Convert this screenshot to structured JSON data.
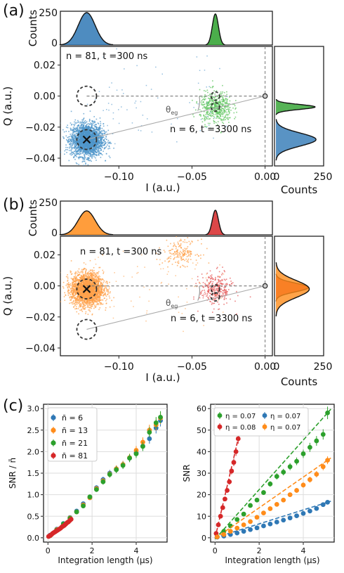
{
  "panels": [
    {
      "id": "a",
      "label": "(a)",
      "ann_top": "n = 81, t =300 ns",
      "ann_bottom": "n = 6, t =3300 ns",
      "theta_label": "θeg",
      "xlabel": "I (a.u.)",
      "ylabel": "Q (a.u.)",
      "xticks": [
        "−0.10",
        "−0.05",
        "0.00"
      ],
      "yticks": [
        "0.02",
        "0.00",
        "−0.02",
        "−0.04"
      ],
      "top_ylabel": "Counts",
      "top_yticks": [
        "0",
        "250"
      ],
      "right_xlabel": "Counts",
      "right_xticks": [
        "0",
        "250"
      ]
    },
    {
      "id": "b",
      "label": "(b)",
      "ann_top": "n = 81, t =300 ns",
      "ann_bottom": "n = 6, t =3300 ns",
      "theta_label": "θeg",
      "xlabel": "I (a.u.)",
      "ylabel": "Q (a.u.)",
      "xticks": [
        "−0.10",
        "−0.05",
        "0.00"
      ],
      "yticks": [
        "0.02",
        "0.00",
        "−0.02",
        "−0.04"
      ],
      "top_ylabel": "Counts",
      "top_yticks": [
        "0",
        "250"
      ],
      "right_xlabel": "Counts",
      "right_xticks": [
        "0",
        "250"
      ]
    }
  ],
  "panel_c_label": "(c)",
  "colors": {
    "blue": "#2f78b5",
    "blue_light": "#4f95c9",
    "green": "#2ca02c",
    "green_light": "#5ec45e",
    "orange": "#ff8c1a",
    "orange_light": "#ffa04a",
    "red": "#d62728",
    "red_light": "#e55a5a",
    "dark": "#1a1a1a"
  },
  "chart_data": [
    {
      "type": "scatter",
      "panel": "a",
      "title": "",
      "xlabel": "I (a.u.)",
      "ylabel": "Q (a.u.)",
      "xlim": [
        -0.14,
        0.005
      ],
      "ylim": [
        -0.045,
        0.032
      ],
      "clusters": [
        {
          "name": "blue cloud",
          "color": "blue",
          "center": [
            -0.122,
            -0.028
          ],
          "count_estimate": 2500
        },
        {
          "name": "green cloud",
          "color": "green",
          "center": [
            -0.034,
            -0.007
          ],
          "count_estimate": 500
        }
      ],
      "markers": [
        {
          "type": "cross",
          "center": [
            -0.122,
            -0.028
          ]
        },
        {
          "type": "dashed_circle",
          "center": [
            -0.122,
            -0.028
          ]
        },
        {
          "type": "dashed_circle",
          "center": [
            -0.122,
            0.0
          ]
        },
        {
          "type": "dashed_circle",
          "center": [
            -0.034,
            -0.007
          ]
        },
        {
          "type": "dashed_circle",
          "center": [
            -0.034,
            0.0
          ]
        },
        {
          "type": "origin_circle",
          "center": [
            0.0,
            0.0
          ]
        }
      ],
      "lines": [
        {
          "style": "dashed",
          "from": [
            -0.122,
            0.0
          ],
          "to": [
            0.0,
            0.0
          ]
        },
        {
          "style": "solid",
          "from": [
            -0.122,
            -0.028
          ],
          "to": [
            0.0,
            0.0
          ]
        }
      ],
      "top_hist": {
        "ylim": [
          0,
          250
        ],
        "peaks": [
          {
            "center": -0.122,
            "height": 250,
            "color": "blue"
          },
          {
            "center": -0.034,
            "height": 240,
            "color": "green"
          }
        ]
      },
      "right_hist": {
        "xlim": [
          0,
          250
        ],
        "peaks": [
          {
            "center": -0.007,
            "height": 205,
            "color": "green"
          },
          {
            "center": -0.028,
            "height": 210,
            "color": "blue"
          }
        ]
      }
    },
    {
      "type": "scatter",
      "panel": "b",
      "title": "",
      "xlabel": "I (a.u.)",
      "ylabel": "Q (a.u.)",
      "xlim": [
        -0.14,
        0.005
      ],
      "ylim": [
        -0.045,
        0.032
      ],
      "clusters": [
        {
          "name": "orange cloud",
          "color": "orange",
          "center": [
            -0.122,
            -0.002
          ],
          "count_estimate": 2500
        },
        {
          "name": "orange secondary",
          "color": "orange",
          "center": [
            -0.058,
            0.022
          ],
          "count_estimate": 180
        },
        {
          "name": "red cloud",
          "color": "red",
          "center": [
            -0.034,
            -0.002
          ],
          "count_estimate": 300
        }
      ],
      "markers": [
        {
          "type": "cross",
          "center": [
            -0.122,
            -0.002
          ]
        },
        {
          "type": "dashed_circle",
          "center": [
            -0.122,
            -0.002
          ]
        },
        {
          "type": "dashed_circle",
          "center": [
            -0.122,
            -0.028
          ]
        },
        {
          "type": "dashed_circle",
          "center": [
            -0.034,
            -0.002
          ]
        },
        {
          "type": "dashed_circle",
          "center": [
            -0.034,
            -0.007
          ]
        },
        {
          "type": "origin_circle",
          "center": [
            0.0,
            0.0
          ]
        }
      ],
      "lines": [
        {
          "style": "dashed",
          "from": [
            -0.122,
            0.0
          ],
          "to": [
            0.0,
            0.0
          ]
        },
        {
          "style": "solid",
          "from": [
            -0.122,
            -0.028
          ],
          "to": [
            0.0,
            0.0
          ]
        }
      ],
      "top_hist": {
        "ylim": [
          0,
          250
        ],
        "peaks": [
          {
            "center": -0.122,
            "height": 185,
            "color": "orange"
          },
          {
            "center": -0.034,
            "height": 190,
            "color": "red"
          }
        ]
      },
      "right_hist": {
        "xlim": [
          0,
          250
        ],
        "peaks": [
          {
            "center": -0.001,
            "height": 170,
            "color": "red"
          },
          {
            "center": -0.002,
            "height": 175,
            "color": "orange"
          }
        ]
      }
    },
    {
      "type": "scatter",
      "panel": "c-left",
      "title": "",
      "xlabel": "Integration length (μs)",
      "ylabel": "SNR / n̄",
      "xlim": [
        -0.2,
        5.4
      ],
      "ylim": [
        -0.1,
        3.1
      ],
      "xticks": [
        "0",
        "2",
        "4"
      ],
      "yticks": [
        "0.0",
        "0.5",
        "1.0",
        "1.5",
        "2.0",
        "2.5",
        "3.0"
      ],
      "grid": true,
      "legend": "top-left",
      "series": [
        {
          "name": "n̄ = 6",
          "color": "blue",
          "x": [
            0.1,
            0.4,
            0.7,
            1.0,
            1.3,
            1.6,
            1.9,
            2.2,
            2.5,
            2.8,
            3.1,
            3.4,
            3.7,
            4.0,
            4.3,
            4.6,
            4.9,
            5.1
          ],
          "y": [
            0.06,
            0.2,
            0.33,
            0.47,
            0.62,
            0.79,
            0.93,
            1.16,
            1.35,
            1.5,
            1.6,
            1.7,
            1.85,
            1.97,
            2.13,
            2.3,
            2.55,
            2.72
          ]
        },
        {
          "name": "n̄ = 13",
          "color": "orange",
          "x": [
            0.1,
            0.4,
            0.7,
            1.0,
            1.3,
            1.6,
            1.9,
            2.2,
            2.5,
            2.8,
            3.1,
            3.4,
            3.7,
            4.0,
            4.3,
            4.6,
            4.9,
            5.1
          ],
          "y": [
            0.05,
            0.19,
            0.31,
            0.46,
            0.6,
            0.76,
            0.93,
            1.14,
            1.32,
            1.48,
            1.6,
            1.7,
            1.86,
            2.03,
            2.22,
            2.5,
            2.62,
            2.78
          ]
        },
        {
          "name": "n̄ = 21",
          "color": "green",
          "x": [
            0.1,
            0.4,
            0.7,
            1.0,
            1.3,
            1.6,
            1.9,
            2.2,
            2.5,
            2.8,
            3.1,
            3.4,
            3.7,
            4.0,
            4.3,
            4.6,
            4.9,
            5.1
          ],
          "y": [
            0.05,
            0.18,
            0.32,
            0.45,
            0.6,
            0.74,
            0.95,
            1.12,
            1.3,
            1.47,
            1.58,
            1.68,
            1.85,
            1.95,
            2.12,
            2.45,
            2.67,
            2.8
          ]
        },
        {
          "name": "n̄ = 81",
          "color": "red",
          "x": [
            0.03,
            0.09,
            0.15,
            0.21,
            0.27,
            0.33,
            0.39,
            0.45,
            0.51,
            0.57,
            0.63,
            0.69,
            0.75,
            0.81,
            0.87,
            0.93,
            0.99,
            1.05
          ],
          "y": [
            0.03,
            0.05,
            0.07,
            0.1,
            0.12,
            0.14,
            0.16,
            0.18,
            0.2,
            0.22,
            0.25,
            0.27,
            0.29,
            0.32,
            0.35,
            0.37,
            0.4,
            0.43
          ]
        }
      ]
    },
    {
      "type": "scatter",
      "panel": "c-right",
      "title": "",
      "xlabel": "Integration length (μs)",
      "ylabel": "SNR",
      "xlim": [
        -0.2,
        5.4
      ],
      "ylim": [
        -2,
        62
      ],
      "xticks": [
        "0",
        "2",
        "4"
      ],
      "yticks": [
        "0",
        "10",
        "20",
        "30",
        "40",
        "50",
        "60"
      ],
      "grid": true,
      "legend": "top-left",
      "series": [
        {
          "name": "η = 0.07",
          "color": "green",
          "x": [
            0.1,
            0.4,
            0.7,
            1.0,
            1.3,
            1.6,
            1.9,
            2.2,
            2.5,
            2.8,
            3.1,
            3.4,
            3.7,
            4.0,
            4.3,
            4.6,
            4.9,
            5.1
          ],
          "y": [
            0.5,
            3,
            5.5,
            8.5,
            11,
            15,
            17.5,
            21,
            25,
            28.5,
            30.5,
            33,
            35.5,
            39,
            42,
            45,
            48,
            58
          ]
        },
        {
          "name": "η = 0.08",
          "color": "red",
          "x": [
            0.05,
            0.15,
            0.25,
            0.35,
            0.45,
            0.55,
            0.65,
            0.75,
            0.85,
            0.95,
            1.05
          ],
          "y": [
            2,
            6,
            10,
            14,
            18,
            22,
            26,
            31,
            35,
            40,
            46
          ]
        },
        {
          "name": "η = 0.07",
          "color": "blue",
          "x": [
            0.1,
            0.4,
            0.7,
            1.0,
            1.3,
            1.6,
            1.9,
            2.2,
            2.5,
            2.8,
            3.1,
            3.4,
            3.7,
            4.0,
            4.3,
            4.6,
            4.9,
            5.1
          ],
          "y": [
            0.3,
            0.8,
            1.5,
            2.2,
            3,
            3.8,
            4.6,
            5.5,
            6.4,
            7.3,
            8.2,
            9.2,
            10.2,
            11.3,
            12.4,
            13.6,
            15.4,
            16.5
          ]
        },
        {
          "name": "η = 0.07",
          "color": "orange",
          "x": [
            0.1,
            0.4,
            0.7,
            1.0,
            1.3,
            1.6,
            1.9,
            2.2,
            2.5,
            2.8,
            3.1,
            3.4,
            3.7,
            4.0,
            4.3,
            4.6,
            4.9,
            5.1
          ],
          "y": [
            0.4,
            1.5,
            3,
            4.5,
            6,
            7.5,
            9.5,
            11.5,
            13.5,
            15.5,
            17.5,
            20,
            22,
            24.5,
            27,
            29.5,
            33,
            36
          ]
        }
      ]
    }
  ]
}
